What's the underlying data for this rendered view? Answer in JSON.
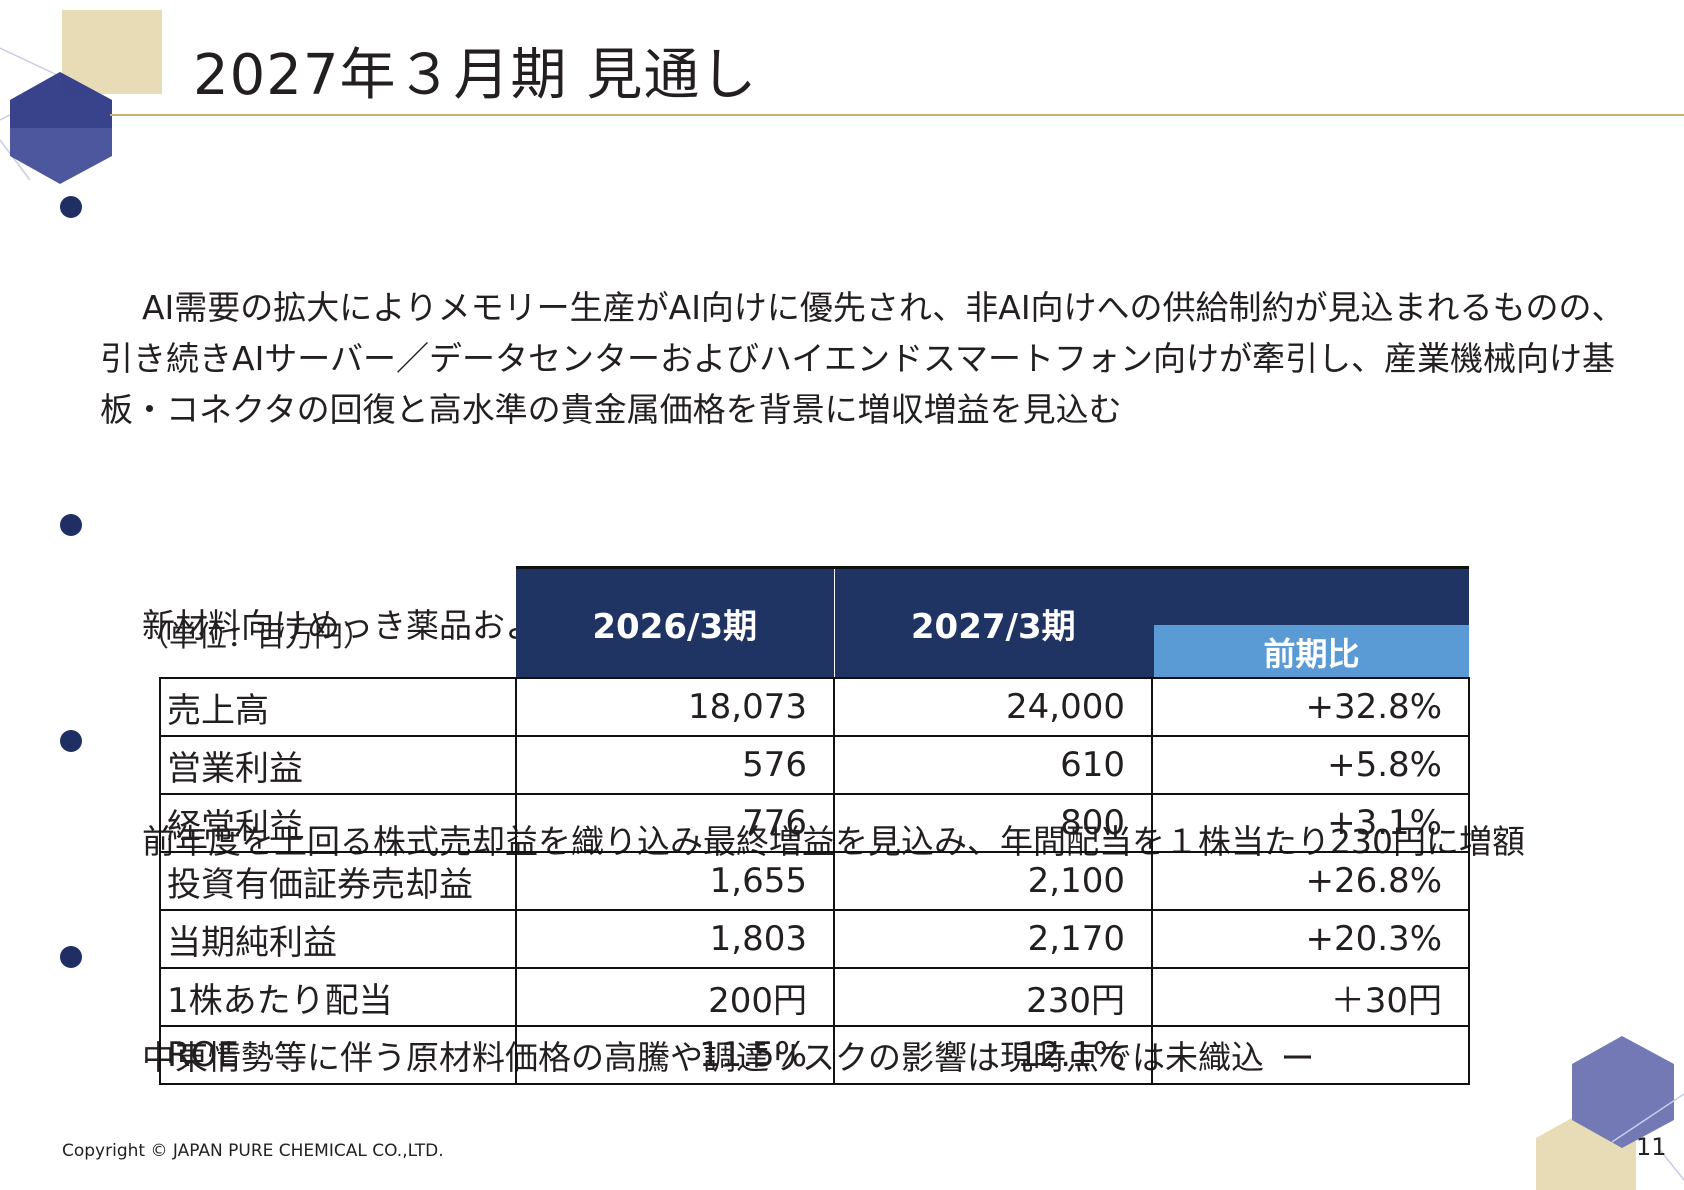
{
  "title": "2027年３月期 見通し",
  "bullets": [
    "AI需要の拡大によりメモリー生産がAI向けに優先され、非AI向けへの供給制約が見込まれるものの、\n引き続きAIサーバー／データセンターおよびハイエンドスマートフォン向けが牽引し、産業機械向け基\n板・コネクタの回復と高水準の貴金属価格を背景に増収増益を見込む",
    "新材料向けめっき薬品および電池材料の開発を軸に、研究開発活動の一層の強化を図る",
    "前年度を上回る株式売却益を織り込み最終増益を見込み、年間配当を１株当たり230円に増額",
    "中東情勢等に伴う原材料価格の高騰や調達リスクの影響は現時点では未織込"
  ],
  "table": {
    "unit": "（単位：百万円）",
    "headers": [
      "2026/3期",
      "2027/3期",
      "前期比"
    ],
    "rows": [
      {
        "label": "売上高",
        "v2026": "18,073",
        "v2027": "24,000",
        "change": "+32.8%"
      },
      {
        "label": "営業利益",
        "v2026": "576",
        "v2027": "610",
        "change": "+5.8%"
      },
      {
        "label": "経常利益",
        "v2026": "776",
        "v2027": "800",
        "change": "+3.1%"
      },
      {
        "label": "投資有価証券売却益",
        "v2026": "1,655",
        "v2027": "2,100",
        "change": "+26.8%"
      },
      {
        "label": "当期純利益",
        "v2026": "1,803",
        "v2027": "2,170",
        "change": "+20.3%"
      },
      {
        "label": "1株あたり配当",
        "v2026": "200円",
        "v2027": "230円",
        "change": "＋30円"
      },
      {
        "label": "ROE",
        "v2026": "11.5%",
        "v2027": "12.1%",
        "change": "ー"
      }
    ]
  },
  "footer": {
    "copyright": "Copyright © JAPAN PURE CHEMICAL CO.,LTD.",
    "page_number": "11"
  },
  "colors": {
    "navy": "#1f3462",
    "header_sub": "#5b9bd5",
    "gold": "#c8b070",
    "hex_blue": "#5a64a8"
  }
}
